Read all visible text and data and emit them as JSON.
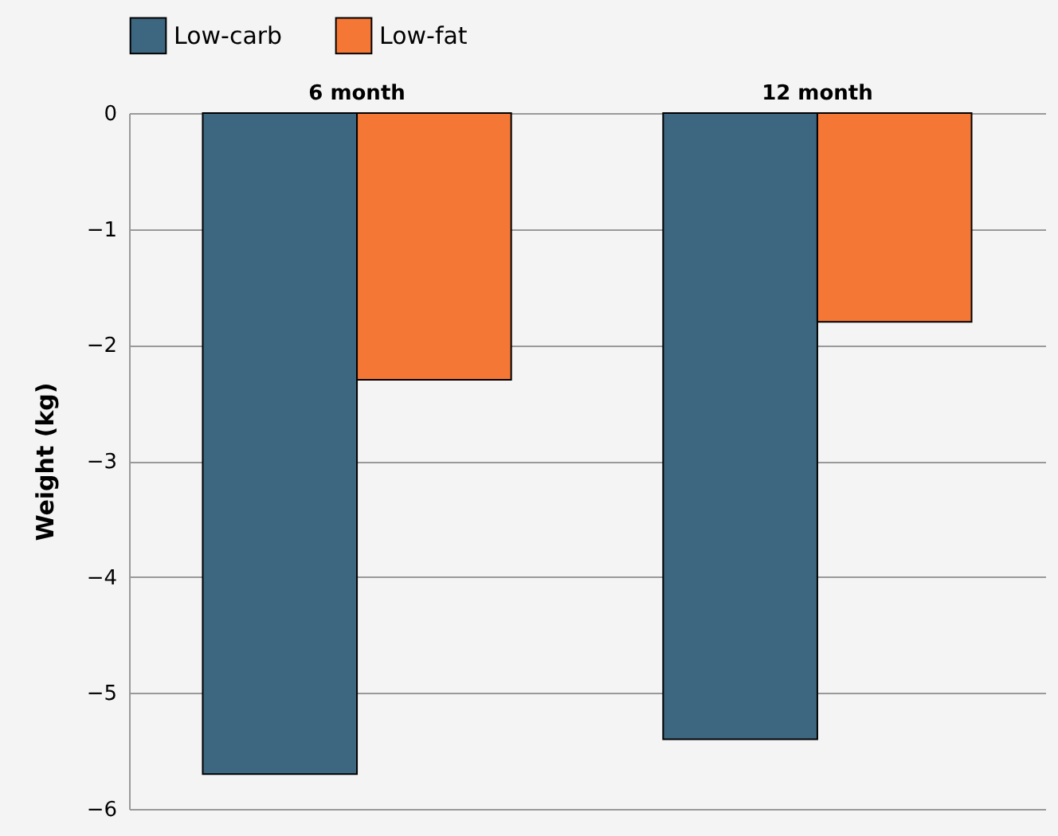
{
  "chart_data": {
    "type": "bar",
    "ylabel": "Weight (kg)",
    "categories": [
      "6 month",
      "12 month"
    ],
    "series": [
      {
        "name": "Low-carb",
        "color": "#3d6680",
        "values": [
          -5.7,
          -5.4
        ]
      },
      {
        "name": "Low-fat",
        "color": "#f47735",
        "values": [
          -2.3,
          -1.8
        ]
      }
    ],
    "ylim": [
      -6,
      0
    ],
    "yticks": [
      -6,
      -5,
      -4,
      -3,
      -2,
      -1,
      0
    ],
    "grid": "y",
    "legend": "top"
  }
}
